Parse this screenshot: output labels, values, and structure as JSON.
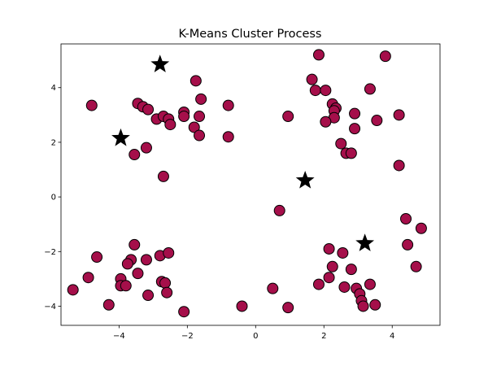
{
  "chart_data": {
    "type": "scatter",
    "title": "K-Means Cluster Process",
    "xlabel": "",
    "ylabel": "",
    "xlim": [
      -5.7,
      5.4
    ],
    "ylim": [
      -4.7,
      5.6
    ],
    "xticks": [
      -4,
      -2,
      0,
      2,
      4
    ],
    "yticks": [
      -4,
      -2,
      0,
      2,
      4
    ],
    "xtick_labels": [
      "−4",
      "−2",
      "0",
      "2",
      "4"
    ],
    "ytick_labels": [
      "−4",
      "−2",
      "0",
      "2",
      "4"
    ],
    "grid": false,
    "colors": {
      "points": "#a50f4a",
      "point_edge": "#000000",
      "centroids": "#000000"
    },
    "series": [
      {
        "marker": "circle",
        "points": [
          [
            -4.8,
            3.35
          ],
          [
            -3.45,
            3.42
          ],
          [
            -3.3,
            3.3
          ],
          [
            -3.15,
            3.2
          ],
          [
            -2.9,
            2.85
          ],
          [
            -2.7,
            2.95
          ],
          [
            -2.55,
            2.85
          ],
          [
            -2.5,
            2.65
          ],
          [
            -2.1,
            3.1
          ],
          [
            -2.1,
            2.95
          ],
          [
            -1.75,
            4.25
          ],
          [
            -1.6,
            3.58
          ],
          [
            -1.65,
            2.95
          ],
          [
            -1.8,
            2.55
          ],
          [
            -1.65,
            2.25
          ],
          [
            -0.8,
            3.35
          ],
          [
            -0.8,
            2.2
          ],
          [
            -3.2,
            1.8
          ],
          [
            -3.55,
            1.55
          ],
          [
            -2.7,
            0.75
          ],
          [
            1.85,
            5.2
          ],
          [
            3.8,
            5.15
          ],
          [
            1.65,
            4.3
          ],
          [
            1.75,
            3.9
          ],
          [
            2.05,
            3.9
          ],
          [
            3.35,
            3.95
          ],
          [
            2.25,
            3.4
          ],
          [
            2.35,
            3.25
          ],
          [
            2.3,
            3.15
          ],
          [
            2.3,
            2.9
          ],
          [
            2.05,
            2.75
          ],
          [
            0.95,
            2.95
          ],
          [
            2.9,
            3.05
          ],
          [
            3.55,
            2.8
          ],
          [
            2.9,
            2.5
          ],
          [
            4.2,
            3.0
          ],
          [
            2.5,
            1.95
          ],
          [
            2.65,
            1.6
          ],
          [
            2.8,
            1.6
          ],
          [
            4.2,
            1.15
          ],
          [
            0.7,
            -0.5
          ],
          [
            4.4,
            -0.8
          ],
          [
            4.85,
            -1.15
          ],
          [
            4.45,
            -1.75
          ],
          [
            2.15,
            -1.9
          ],
          [
            2.55,
            -2.05
          ],
          [
            4.7,
            -2.55
          ],
          [
            2.25,
            -2.55
          ],
          [
            2.8,
            -2.65
          ],
          [
            2.15,
            -2.95
          ],
          [
            1.85,
            -3.2
          ],
          [
            2.6,
            -3.3
          ],
          [
            2.95,
            -3.35
          ],
          [
            3.35,
            -3.2
          ],
          [
            3.05,
            -3.55
          ],
          [
            3.1,
            -3.8
          ],
          [
            3.15,
            -4.0
          ],
          [
            3.5,
            -3.95
          ],
          [
            -4.65,
            -2.2
          ],
          [
            -3.55,
            -1.75
          ],
          [
            -3.65,
            -2.3
          ],
          [
            -3.75,
            -2.45
          ],
          [
            -3.2,
            -2.3
          ],
          [
            -2.8,
            -2.15
          ],
          [
            -2.55,
            -2.05
          ],
          [
            -4.9,
            -2.95
          ],
          [
            -3.95,
            -3.0
          ],
          [
            -3.45,
            -2.8
          ],
          [
            -3.95,
            -3.25
          ],
          [
            -3.8,
            -3.25
          ],
          [
            -2.75,
            -3.1
          ],
          [
            -2.65,
            -3.15
          ],
          [
            -2.6,
            -3.5
          ],
          [
            -3.15,
            -3.6
          ],
          [
            -5.35,
            -3.4
          ],
          [
            -4.3,
            -3.95
          ],
          [
            -2.1,
            -4.2
          ],
          [
            -0.4,
            -4.0
          ],
          [
            0.95,
            -4.05
          ],
          [
            0.5,
            -3.35
          ]
        ]
      },
      {
        "marker": "star",
        "points": [
          [
            -2.8,
            4.85
          ],
          [
            -3.95,
            2.15
          ],
          [
            1.45,
            0.6
          ],
          [
            3.2,
            -1.7
          ]
        ]
      }
    ]
  }
}
